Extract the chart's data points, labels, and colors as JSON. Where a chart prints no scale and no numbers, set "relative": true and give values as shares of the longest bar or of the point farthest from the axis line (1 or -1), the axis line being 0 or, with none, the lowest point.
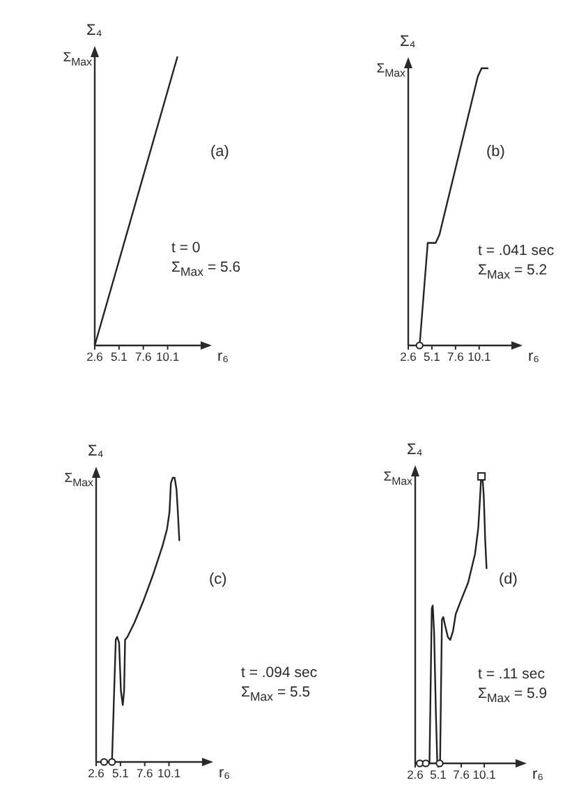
{
  "chart_data": [
    {
      "type": "line",
      "xlabel": "r₆",
      "ylabel": "Σ₄",
      "relative": true,
      "xlim": [
        2.6,
        13.5
      ],
      "xticks": [
        2.6,
        5.1,
        7.6,
        10.1
      ],
      "annotations": [
        "Σ$_{Max}$",
        "(a)",
        "t = 0",
        "Σ$_{Max}$ = 5.6"
      ],
      "series": [
        {
          "color": "#222222",
          "x": [
            2.6,
            11.1
          ],
          "values": [
            0,
            1
          ]
        }
      ]
    },
    {
      "type": "line",
      "xlabel": "r₆",
      "ylabel": "Σ₄",
      "relative": true,
      "xlim": [
        2.6,
        13.5
      ],
      "xticks": [
        2.6,
        5.1,
        7.6,
        10.1
      ],
      "annotations": [
        "Σ$_{Max}$",
        "(b)",
        "t = .041 sec",
        "Σ$_{Max}$ = 5.2"
      ],
      "series": [
        {
          "color": "#222222",
          "x": [
            3.8,
            4.66,
            5.5,
            5.9,
            9.95,
            10.35,
            11.0
          ],
          "values": [
            0,
            0.37,
            0.37,
            0.4,
            0.97,
            1,
            1
          ]
        },
        {
          "type": "scatter",
          "marker": "circle",
          "color": "#222222",
          "x": [
            3.8
          ],
          "values": [
            0
          ]
        }
      ]
    },
    {
      "type": "line",
      "xlabel": "r₆",
      "ylabel": "Σ₄",
      "relative": true,
      "xlim": [
        2.6,
        13.5
      ],
      "xticks": [
        2.6,
        5.1,
        7.6,
        10.1
      ],
      "annotations": [
        "Σ$_{Max}$",
        "(c)",
        "t = .094 sec",
        "Σ$_{Max}$ = 5.5"
      ],
      "series": [
        {
          "color": "#222222",
          "x": [
            4.23,
            4.62,
            4.76,
            4.96,
            5.15,
            5.34,
            5.48,
            5.58,
            5.82,
            6.54,
            7.5,
            8.47,
            9.43,
            9.9,
            10.15,
            10.29,
            10.48,
            10.68,
            10.87,
            11.01,
            11.16
          ],
          "values": [
            0,
            0.43,
            0.44,
            0.42,
            0.25,
            0.2,
            0.25,
            0.43,
            0.44,
            0.49,
            0.57,
            0.66,
            0.76,
            0.82,
            0.88,
            0.98,
            1,
            1,
            0.96,
            0.88,
            0.78
          ]
        },
        {
          "type": "scatter",
          "marker": "circle",
          "color": "#222222",
          "x": [
            3.42,
            4.23
          ],
          "values": [
            0,
            0
          ]
        }
      ]
    },
    {
      "type": "line",
      "xlabel": "r₆",
      "ylabel": "Σ₄",
      "relative": true,
      "xlim": [
        2.6,
        13.5
      ],
      "xticks": [
        2.6,
        5.1,
        7.6,
        10.1
      ],
      "annotations": [
        "Σ$_{Max}$",
        "(d)",
        "t = .11 sec",
        "Σ$_{Max}$ = 5.9"
      ],
      "series": [
        {
          "color": "#222222",
          "x": [
            4.15,
            4.4,
            4.5,
            4.65,
            4.85,
            5.0,
            5.3,
            5.5,
            5.65,
            5.85,
            6.15,
            6.4,
            6.7,
            7.0,
            7.6,
            8.35,
            9.1,
            9.45,
            9.65,
            9.75,
            9.9,
            10.05,
            10.2,
            10.35
          ],
          "values": [
            0,
            0.54,
            0.55,
            0.46,
            0.17,
            0,
            0,
            0.5,
            0.51,
            0.48,
            0.44,
            0.43,
            0.46,
            0.52,
            0.57,
            0.63,
            0.73,
            0.82,
            0.93,
            0.99,
            1,
            0.93,
            0.78,
            0.68
          ]
        },
        {
          "type": "scatter",
          "marker": "circle",
          "color": "#222222",
          "x": [
            3.1,
            3.75,
            5.25
          ],
          "values": [
            0,
            0,
            0
          ]
        },
        {
          "type": "scatter",
          "marker": "square",
          "color": "#222222",
          "x": [
            9.8
          ],
          "values": [
            1
          ]
        }
      ]
    }
  ]
}
